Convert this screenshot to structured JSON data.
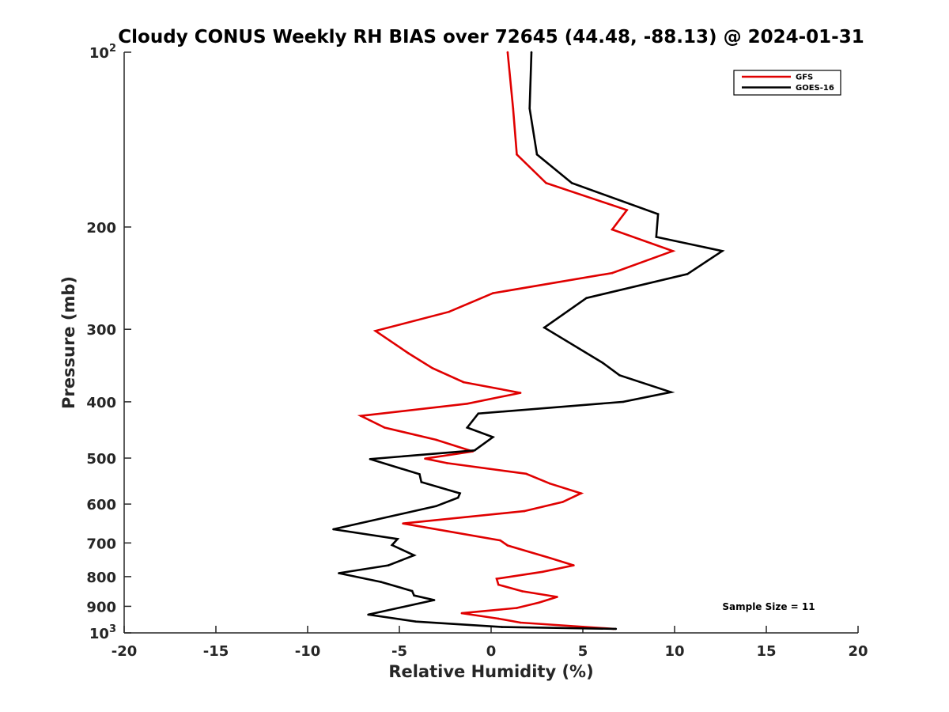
{
  "chart_data": {
    "type": "line",
    "title": "Cloudy CONUS Weekly RH BIAS over 72645 (44.48, -88.13) @ 2024-01-31",
    "xlabel": "Relative Humidity (%)",
    "ylabel": "Pressure (mb)",
    "xlim": [
      -20,
      20
    ],
    "ylim": [
      100,
      1000
    ],
    "y_scale": "log",
    "y_reversed": true,
    "grid": false,
    "legend_position": "top-right",
    "x_ticks": [
      "-20",
      "-15",
      "-10",
      "-5",
      "0",
      "5",
      "10",
      "15",
      "20"
    ],
    "y_ticks": [
      {
        "value": 100,
        "base": "10",
        "exp": "2"
      },
      {
        "value": 200,
        "label": "200"
      },
      {
        "value": 300,
        "label": "300"
      },
      {
        "value": 400,
        "label": "400"
      },
      {
        "value": 500,
        "label": "500"
      },
      {
        "value": 600,
        "label": "600"
      },
      {
        "value": 700,
        "label": "700"
      },
      {
        "value": 800,
        "label": "800"
      },
      {
        "value": 900,
        "label": "900"
      },
      {
        "value": 1000,
        "base": "10",
        "exp": "3"
      }
    ],
    "annotation": "Sample Size = 11",
    "series": [
      {
        "name": "GFS",
        "color": "#e00000",
        "points": [
          [
            0.9,
            100
          ],
          [
            1.2,
            125
          ],
          [
            1.4,
            150
          ],
          [
            3.0,
            168
          ],
          [
            7.4,
            187
          ],
          [
            6.6,
            202
          ],
          [
            9.9,
            220
          ],
          [
            6.6,
            240
          ],
          [
            0.1,
            260
          ],
          [
            -2.3,
            280
          ],
          [
            -6.3,
            302
          ],
          [
            -4.5,
            330
          ],
          [
            -3.2,
            350
          ],
          [
            -1.5,
            370
          ],
          [
            1.6,
            386
          ],
          [
            -1.3,
            403
          ],
          [
            -7.1,
            423
          ],
          [
            -5.8,
            443
          ],
          [
            -3.0,
            465
          ],
          [
            -1.0,
            487
          ],
          [
            -3.6,
            501
          ],
          [
            -2.4,
            510
          ],
          [
            1.9,
            532
          ],
          [
            3.2,
            553
          ],
          [
            4.9,
            575
          ],
          [
            3.9,
            595
          ],
          [
            1.8,
            617
          ],
          [
            -4.8,
            648
          ],
          [
            0.5,
            693
          ],
          [
            0.9,
            707
          ],
          [
            3.2,
            743
          ],
          [
            4.5,
            765
          ],
          [
            2.8,
            785
          ],
          [
            0.3,
            807
          ],
          [
            0.4,
            826
          ],
          [
            1.7,
            848
          ],
          [
            3.6,
            867
          ],
          [
            2.6,
            887
          ],
          [
            1.4,
            906
          ],
          [
            -1.6,
            925
          ],
          [
            0.4,
            945
          ],
          [
            1.6,
            960
          ],
          [
            6.7,
            984
          ]
        ]
      },
      {
        "name": "GOES-16",
        "color": "#000000",
        "points": [
          [
            2.2,
            100
          ],
          [
            2.1,
            125
          ],
          [
            2.5,
            150
          ],
          [
            4.4,
            168
          ],
          [
            9.1,
            190
          ],
          [
            9.0,
            208
          ],
          [
            12.6,
            220
          ],
          [
            10.7,
            241
          ],
          [
            5.2,
            265
          ],
          [
            2.9,
            298
          ],
          [
            6.1,
            343
          ],
          [
            7.0,
            360
          ],
          [
            9.8,
            385
          ],
          [
            7.2,
            400
          ],
          [
            -0.7,
            419
          ],
          [
            -1.3,
            443
          ],
          [
            0.1,
            460
          ],
          [
            -0.9,
            485
          ],
          [
            -6.6,
            502
          ],
          [
            -3.9,
            533
          ],
          [
            -3.8,
            550
          ],
          [
            -1.7,
            575
          ],
          [
            -1.8,
            585
          ],
          [
            -3.0,
            605
          ],
          [
            -8.6,
            663
          ],
          [
            -5.1,
            689
          ],
          [
            -5.4,
            706
          ],
          [
            -4.2,
            735
          ],
          [
            -4.9,
            750
          ],
          [
            -5.6,
            765
          ],
          [
            -8.3,
            789
          ],
          [
            -6.0,
            817
          ],
          [
            -4.3,
            847
          ],
          [
            -4.2,
            862
          ],
          [
            -3.1,
            878
          ],
          [
            -6.7,
            930
          ],
          [
            -4.1,
            956
          ],
          [
            0.6,
            977
          ],
          [
            6.8,
            984
          ]
        ]
      }
    ]
  }
}
